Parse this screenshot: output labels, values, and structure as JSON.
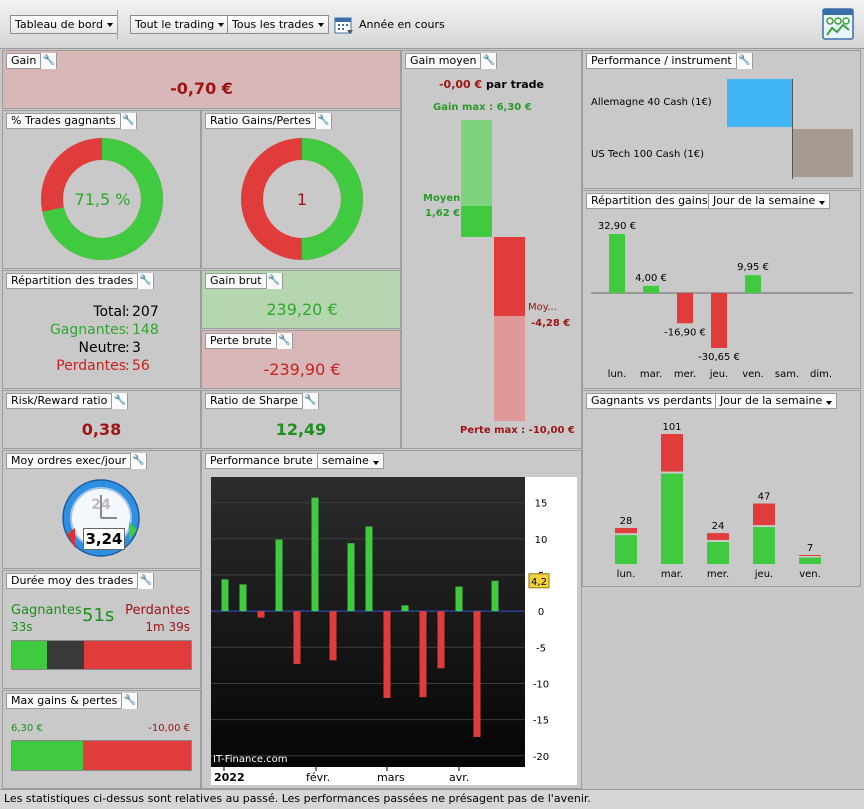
{
  "toolbar": {
    "dashboard": "Tableau de bord",
    "trading": "Tout le trading",
    "trades": "Tous les trades",
    "period": "Année en cours"
  },
  "gain": {
    "title": "Gain",
    "value": "-0,70 €"
  },
  "gain_moyen": {
    "title": "Gain moyen",
    "value": "-0,00 €",
    "per_trade": "par trade",
    "max_label": "Gain max : 6,30 €",
    "moyen_label": "Moyen",
    "moyen_value": "1,62 €",
    "loss_label": "Moy...",
    "loss_value": "-4,28 €",
    "perte_max_label": "Perte max : -10,00 €"
  },
  "pct_gagnants": {
    "title": "% Trades gagnants",
    "value": "71,5 %",
    "fraction": 0.715
  },
  "ratio_gp": {
    "title": "Ratio Gains/Pertes",
    "value": "1",
    "fraction": 0.5
  },
  "repartition_trades": {
    "title": "Répartition des trades",
    "total_label": "Total",
    "total": "207",
    "gagnantes_label": "Gagnantes",
    "gagnantes": "148",
    "neutre_label": "Neutre",
    "neutre": "3",
    "perdantes_label": "Perdantes",
    "perdantes": "56"
  },
  "gain_brut": {
    "title": "Gain brut",
    "value": "239,20 €"
  },
  "perte_brute": {
    "title": "Perte brute",
    "value": "-239,90 €"
  },
  "risk_reward": {
    "title": "Risk/Reward ratio",
    "value": "0,38"
  },
  "sharpe": {
    "title": "Ratio de Sharpe",
    "value": "12,49"
  },
  "moy_ordres": {
    "title": "Moy ordres exec/jour",
    "value": "3,24",
    "clock": "24"
  },
  "duree": {
    "title": "Durée moy des trades",
    "gagnantes_label": "Gagnantes",
    "gagnantes": "33s",
    "total": "51s",
    "perdantes_label": "Perdantes",
    "perdantes": "1m 39s"
  },
  "max_gp": {
    "title": "Max gains & pertes",
    "gain": "6,30 €",
    "perte": "-10,00 €"
  },
  "perf_brute": {
    "title": "Performance brute",
    "period": "semaine",
    "watermark": "IT-Finance.com",
    "last_value": "4,2"
  },
  "perf_instrument": {
    "title": "Performance / instrument",
    "items": [
      "Allemagne 40 Cash (1€)",
      "US Tech 100 Cash (1€)"
    ]
  },
  "rep_gains": {
    "title": "Répartition des gains",
    "period": "Jour de la semaine"
  },
  "gvp": {
    "title": "Gagnants vs perdants",
    "period": "Jour de la semaine"
  },
  "footer": "Les statistiques ci-dessus sont relatives au passé. Les performances passées ne présagent pas de l'avenir.",
  "colors": {
    "green": "#3fca3f",
    "red": "#e03c3c",
    "dark_red": "#a01414",
    "instrument_blue": "#40b4f4",
    "instrument_gray": "#a89a8e"
  },
  "chart_data": [
    {
      "type": "bar",
      "title": "Performance brute",
      "x_tick_labels": [
        "2022",
        "févr.",
        "mars",
        "avr."
      ],
      "ylim": [
        -21,
        18
      ],
      "y_ticks": [
        15,
        10,
        5,
        0,
        -5,
        -10,
        -15,
        -20
      ],
      "values": [
        4.4,
        3.7,
        -0.9,
        9.9,
        -7.3,
        15.7,
        -6.8,
        9.4,
        11.7,
        -12.0,
        0.8,
        -11.9,
        -7.9,
        3.4,
        -17.4,
        4.2
      ]
    },
    {
      "type": "bar",
      "title": "Répartition des gains",
      "categories": [
        "lun.",
        "mar.",
        "mer.",
        "jeu.",
        "ven.",
        "sam.",
        "dim."
      ],
      "values": [
        32.9,
        4.0,
        -16.9,
        -30.65,
        9.95,
        0,
        0
      ],
      "labels": [
        "32,90 €",
        "4,00 €",
        "-16,90 €",
        "-30,65 €",
        "9,95 €",
        "",
        ""
      ]
    },
    {
      "type": "bar",
      "title": "Gagnants vs perdants",
      "categories": [
        "lun.",
        "mar.",
        "mer.",
        "jeu.",
        "ven."
      ],
      "series": [
        {
          "name": "Gagnants",
          "values": [
            20,
            64,
            15,
            25,
            5
          ]
        },
        {
          "name": "Perdants",
          "values": [
            5,
            28,
            6,
            16,
            2
          ]
        }
      ],
      "totals": [
        28,
        101,
        24,
        47,
        7
      ]
    },
    {
      "type": "bar",
      "title": "Performance / instrument",
      "categories": [
        "Allemagne 40 Cash (1€)",
        "US Tech 100 Cash (1€)"
      ],
      "values": [
        1,
        -1
      ]
    }
  ]
}
